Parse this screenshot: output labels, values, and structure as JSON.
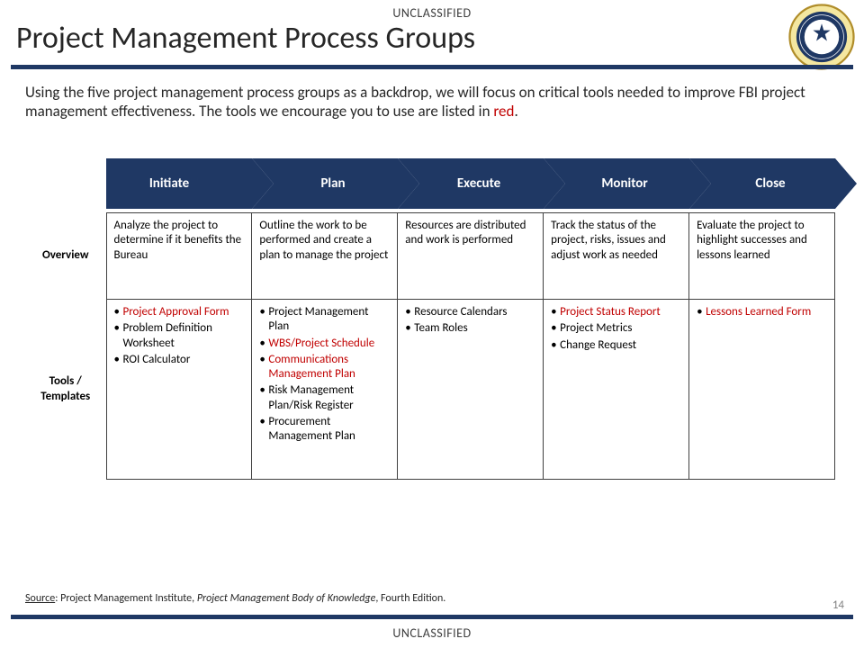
{
  "classification": "UNCLASSIFIED",
  "title": "Project Management Process Groups",
  "intro_pre": "Using the five project management process groups as a backdrop, we will focus on critical tools needed to improve FBI project management effectiveness.  The tools we encourage you to use are listed in ",
  "intro_red": "red",
  "intro_post": ".",
  "page_number": "14",
  "source_label": "Source",
  "source_text_pre": ":  Project Management Institute, ",
  "source_text_it": "Project Management Body of Knowledge",
  "source_text_post": ", Fourth Edition.",
  "row_labels": {
    "overview": "Overview",
    "tools": "Tools / Templates"
  },
  "chevron_fill": "#1f3864",
  "chevron_text_color": "#ffffff",
  "highlight_color": "#c00000",
  "phases": [
    {
      "name": "Initiate",
      "overview": "Analyze the project to determine if it benefits the Bureau",
      "tools": [
        {
          "label": "Project Approval Form",
          "red": true
        },
        {
          "label": "Problem Definition Worksheet",
          "red": false
        },
        {
          "label": "ROI Calculator",
          "red": false
        }
      ]
    },
    {
      "name": "Plan",
      "overview": "Outline the work to be performed and create a plan to manage the project",
      "tools": [
        {
          "label": "Project Management Plan",
          "red": false
        },
        {
          "label": "WBS/Project Schedule",
          "red": true
        },
        {
          "label": "Communications Management Plan",
          "red": true
        },
        {
          "label": "Risk Management Plan/Risk Register",
          "red": false
        },
        {
          "label": "Procurement Management Plan",
          "red": false
        }
      ]
    },
    {
      "name": "Execute",
      "overview": "Resources are distributed and work is performed",
      "tools": [
        {
          "label": "Resource Calendars",
          "red": false
        },
        {
          "label": "Team Roles",
          "red": false
        }
      ]
    },
    {
      "name": "Monitor",
      "overview": "Track the status of the project, risks, issues and adjust work as needed",
      "tools": [
        {
          "label": "Project Status Report",
          "red": true
        },
        {
          "label": "Project Metrics",
          "red": false
        },
        {
          "label": "Change Request",
          "red": false
        }
      ]
    },
    {
      "name": "Close",
      "overview": "Evaluate the project to highlight successes and lessons learned",
      "tools": [
        {
          "label": "Lessons Learned Form",
          "red": true
        }
      ]
    }
  ]
}
